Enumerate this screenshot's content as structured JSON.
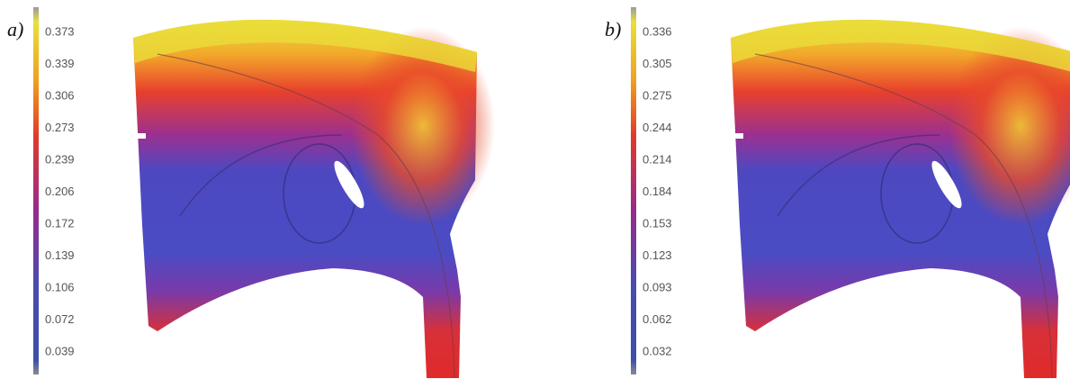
{
  "panels": [
    {
      "label": "a)",
      "scale": [
        "0.373",
        "0.339",
        "0.306",
        "0.273",
        "0.239",
        "0.206",
        "0.172",
        "0.139",
        "0.106",
        "0.072",
        "0.039"
      ]
    },
    {
      "label": "b)",
      "scale": [
        "0.336",
        "0.305",
        "0.275",
        "0.244",
        "0.214",
        "0.184",
        "0.153",
        "0.123",
        "0.093",
        "0.062",
        "0.032"
      ]
    }
  ]
}
